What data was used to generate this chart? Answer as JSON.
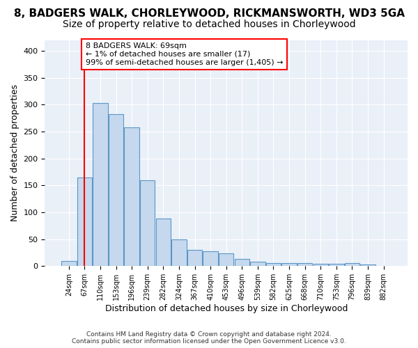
{
  "title": "8, BADGERS WALK, CHORLEYWOOD, RICKMANSWORTH, WD3 5GA",
  "subtitle": "Size of property relative to detached houses in Chorleywood",
  "xlabel": "Distribution of detached houses by size in Chorleywood",
  "ylabel": "Number of detached properties",
  "categories": [
    "24sqm",
    "67sqm",
    "110sqm",
    "153sqm",
    "196sqm",
    "239sqm",
    "282sqm",
    "324sqm",
    "367sqm",
    "410sqm",
    "453sqm",
    "496sqm",
    "539sqm",
    "582sqm",
    "625sqm",
    "668sqm",
    "710sqm",
    "753sqm",
    "796sqm",
    "839sqm",
    "882sqm"
  ],
  "values": [
    9,
    165,
    303,
    282,
    258,
    159,
    88,
    49,
    30,
    27,
    24,
    14,
    8,
    6,
    5,
    5,
    4,
    4,
    5,
    3,
    0
  ],
  "bar_color": "#c5d8ed",
  "bar_edge_color": "#5a96c8",
  "annotation_box_text": "8 BADGERS WALK: 69sqm\n← 1% of detached houses are smaller (17)\n99% of semi-detached houses are larger (1,405) →",
  "vline_x": 1.0,
  "ylim": [
    0,
    420
  ],
  "yticks": [
    0,
    50,
    100,
    150,
    200,
    250,
    300,
    350,
    400
  ],
  "background_color": "#eaf0f8",
  "footer_line1": "Contains HM Land Registry data © Crown copyright and database right 2024.",
  "footer_line2": "Contains public sector information licensed under the Open Government Licence v3.0.",
  "title_fontsize": 11,
  "subtitle_fontsize": 10,
  "xlabel_fontsize": 9,
  "ylabel_fontsize": 9,
  "annotation_fontsize": 8
}
